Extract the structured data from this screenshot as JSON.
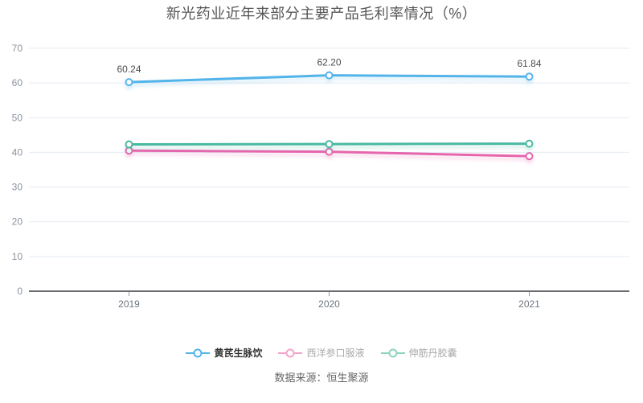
{
  "chart_data": {
    "type": "line",
    "title": "新光药业近年来部分主要产品毛利率情况（%）",
    "categories": [
      "2019",
      "2020",
      "2021"
    ],
    "series": [
      {
        "name": "黄芪生脉饮",
        "values": [
          60.24,
          62.2,
          61.84
        ],
        "point_labels": [
          "60.24",
          "62.20",
          "61.84"
        ],
        "color": "#53b4ea",
        "legend_marker_color": "#53b4ea",
        "legend_active": true
      },
      {
        "name": "西洋参口服液",
        "values": [
          40.5,
          40.2,
          38.9
        ],
        "point_labels": [],
        "color": "#e765ad",
        "legend_marker_color": "#f2a6ca",
        "legend_active": false
      },
      {
        "name": "伸筋丹胶囊",
        "values": [
          42.3,
          42.4,
          42.5
        ],
        "point_labels": [],
        "color": "#49b9a1",
        "legend_marker_color": "#8ed5c0",
        "legend_active": false
      }
    ],
    "ylim": [
      0,
      70
    ],
    "ytick_step": 10,
    "ytick_labels": [
      "0",
      "10",
      "20",
      "30",
      "40",
      "50",
      "60",
      "70"
    ],
    "grid": true,
    "legend_position": "bottom",
    "source": "数据来源：恒生聚源"
  },
  "colors": {
    "grid_line": "#e4eaf2",
    "axis_line": "#55575d",
    "tick": "#9097a1",
    "y_label": "#8a92a0",
    "x_label": "#6d757f",
    "title": "#565656",
    "value_label": "#4c4c4c",
    "legend_active_text": "#333333",
    "legend_inactive_text": "#aaaaaa",
    "source_text": "#666666"
  }
}
